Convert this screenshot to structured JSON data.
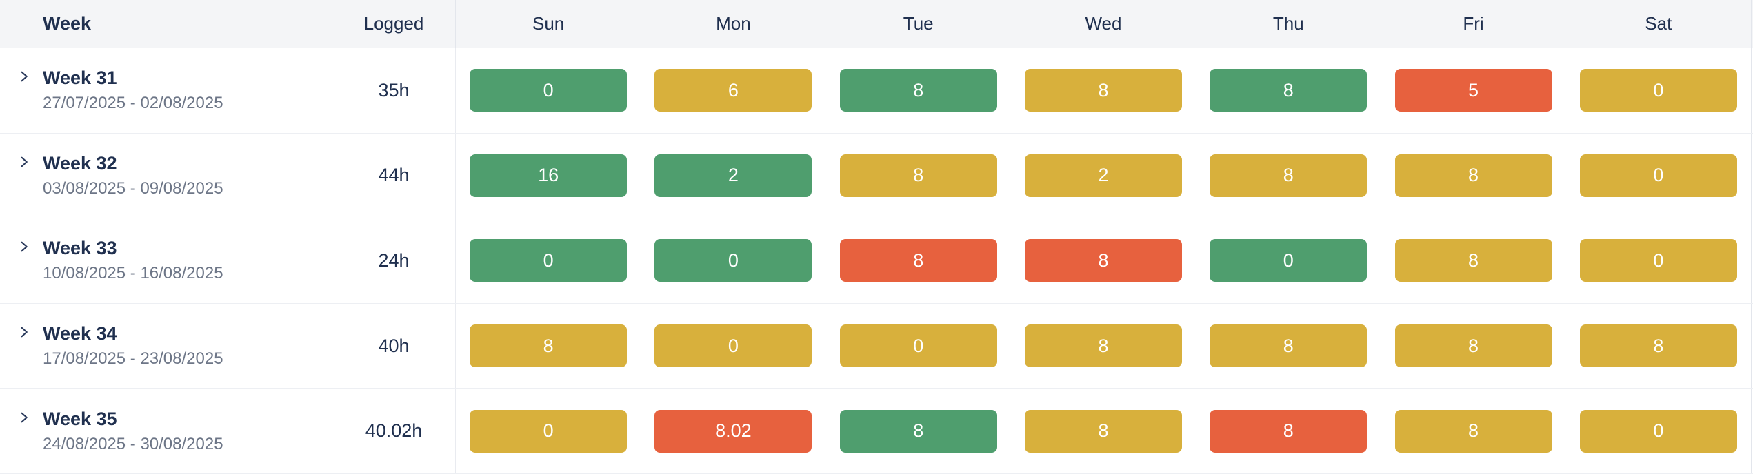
{
  "colors": {
    "green": "#4f9e6e",
    "yellow": "#d8b03c",
    "red": "#e7613e",
    "header_bg": "#f4f5f7",
    "navy": "#20304f",
    "gray": "#6d7687"
  },
  "header": {
    "week": "Week",
    "logged": "Logged",
    "days": [
      "Sun",
      "Mon",
      "Tue",
      "Wed",
      "Thu",
      "Fri",
      "Sat"
    ]
  },
  "rows": [
    {
      "title": "Week 31",
      "range": "27/07/2025 - 02/08/2025",
      "logged": "35h",
      "days": [
        {
          "value": "0",
          "status": "green"
        },
        {
          "value": "6",
          "status": "yellow"
        },
        {
          "value": "8",
          "status": "green"
        },
        {
          "value": "8",
          "status": "yellow"
        },
        {
          "value": "8",
          "status": "green"
        },
        {
          "value": "5",
          "status": "red"
        },
        {
          "value": "0",
          "status": "yellow"
        }
      ]
    },
    {
      "title": "Week 32",
      "range": "03/08/2025 - 09/08/2025",
      "logged": "44h",
      "days": [
        {
          "value": "16",
          "status": "green"
        },
        {
          "value": "2",
          "status": "green"
        },
        {
          "value": "8",
          "status": "yellow"
        },
        {
          "value": "2",
          "status": "yellow"
        },
        {
          "value": "8",
          "status": "yellow"
        },
        {
          "value": "8",
          "status": "yellow"
        },
        {
          "value": "0",
          "status": "yellow"
        }
      ]
    },
    {
      "title": "Week 33",
      "range": "10/08/2025 - 16/08/2025",
      "logged": "24h",
      "days": [
        {
          "value": "0",
          "status": "green"
        },
        {
          "value": "0",
          "status": "green"
        },
        {
          "value": "8",
          "status": "red"
        },
        {
          "value": "8",
          "status": "red"
        },
        {
          "value": "0",
          "status": "green"
        },
        {
          "value": "8",
          "status": "yellow"
        },
        {
          "value": "0",
          "status": "yellow"
        }
      ]
    },
    {
      "title": "Week 34",
      "range": "17/08/2025 - 23/08/2025",
      "logged": "40h",
      "days": [
        {
          "value": "8",
          "status": "yellow"
        },
        {
          "value": "0",
          "status": "yellow"
        },
        {
          "value": "0",
          "status": "yellow"
        },
        {
          "value": "8",
          "status": "yellow"
        },
        {
          "value": "8",
          "status": "yellow"
        },
        {
          "value": "8",
          "status": "yellow"
        },
        {
          "value": "8",
          "status": "yellow"
        }
      ]
    },
    {
      "title": "Week 35",
      "range": "24/08/2025 - 30/08/2025",
      "logged": "40.02h",
      "days": [
        {
          "value": "0",
          "status": "yellow"
        },
        {
          "value": "8.02",
          "status": "red"
        },
        {
          "value": "8",
          "status": "green"
        },
        {
          "value": "8",
          "status": "yellow"
        },
        {
          "value": "8",
          "status": "red"
        },
        {
          "value": "8",
          "status": "yellow"
        },
        {
          "value": "0",
          "status": "yellow"
        }
      ]
    }
  ]
}
